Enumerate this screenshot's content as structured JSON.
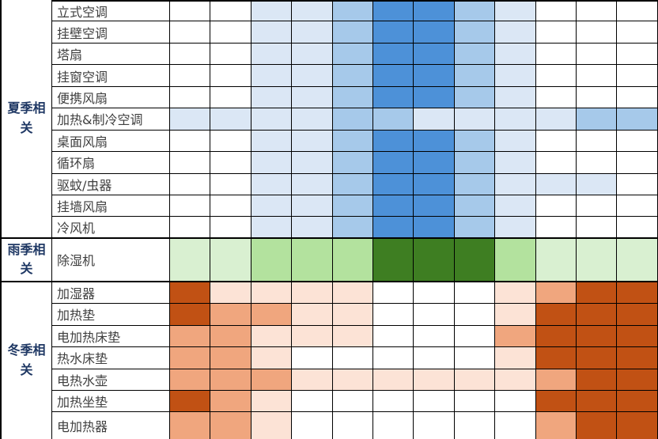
{
  "chart_data": {
    "type": "heatmap",
    "columns": 12,
    "column_labels": [],
    "levels": {
      "0": "none",
      "1": "low",
      "2": "medium",
      "3": "high"
    },
    "palettes": {
      "blue": [
        "#ffffff",
        "#dbe7f5",
        "#a6c9ea",
        "#4d91d8"
      ],
      "green": [
        "#ffffff",
        "#d9f0d1",
        "#b3e29e",
        "#3e7e22"
      ],
      "orange": [
        "#ffffff",
        "#fce3d6",
        "#f0a67e",
        "#c15114"
      ]
    },
    "sections": [
      {
        "key": "summer",
        "category": "夏季相关",
        "palette": "blue",
        "rows": [
          {
            "product": "立式空调",
            "cells": [
              0,
              0,
              1,
              1,
              2,
              3,
              3,
              2,
              1,
              0,
              0,
              0
            ]
          },
          {
            "product": "挂壁空调",
            "cells": [
              0,
              0,
              1,
              1,
              2,
              3,
              3,
              2,
              1,
              0,
              0,
              0
            ]
          },
          {
            "product": "塔扇",
            "cells": [
              0,
              0,
              1,
              1,
              2,
              3,
              3,
              2,
              1,
              0,
              0,
              0
            ]
          },
          {
            "product": "挂窗空调",
            "cells": [
              0,
              0,
              1,
              1,
              2,
              3,
              3,
              2,
              1,
              0,
              0,
              0
            ]
          },
          {
            "product": "便携风扇",
            "cells": [
              0,
              0,
              1,
              1,
              2,
              3,
              3,
              2,
              1,
              0,
              0,
              0
            ]
          },
          {
            "product": "加热&制冷空调",
            "cells": [
              1,
              1,
              1,
              1,
              2,
              2,
              1,
              1,
              1,
              1,
              2,
              2
            ]
          },
          {
            "product": "桌面风扇",
            "cells": [
              0,
              0,
              1,
              1,
              2,
              3,
              3,
              2,
              1,
              0,
              0,
              0
            ]
          },
          {
            "product": "循环扇",
            "cells": [
              0,
              0,
              1,
              1,
              2,
              3,
              3,
              2,
              1,
              0,
              0,
              0
            ]
          },
          {
            "product": "驱蚊/虫器",
            "cells": [
              0,
              0,
              1,
              1,
              2,
              3,
              3,
              2,
              1,
              1,
              1,
              0
            ]
          },
          {
            "product": "挂墙风扇",
            "cells": [
              0,
              0,
              1,
              1,
              2,
              3,
              3,
              2,
              1,
              0,
              0,
              0
            ]
          },
          {
            "product": "冷风机",
            "cells": [
              0,
              0,
              1,
              1,
              2,
              3,
              3,
              2,
              1,
              0,
              0,
              0
            ]
          }
        ]
      },
      {
        "key": "rainy",
        "category": "雨季相关",
        "palette": "green",
        "rows": [
          {
            "product": "除湿机",
            "cells": [
              1,
              1,
              2,
              2,
              2,
              3,
              3,
              3,
              2,
              1,
              1,
              1
            ]
          }
        ]
      },
      {
        "key": "winter",
        "category": "冬季相关",
        "palette": "orange",
        "rows": [
          {
            "product": "加湿器",
            "cells": [
              3,
              1,
              1,
              1,
              1,
              0,
              0,
              0,
              1,
              2,
              3,
              3
            ]
          },
          {
            "product": "加热垫",
            "cells": [
              3,
              2,
              2,
              1,
              1,
              0,
              0,
              0,
              1,
              3,
              3,
              3
            ]
          },
          {
            "product": "电加热床垫",
            "cells": [
              2,
              2,
              1,
              1,
              1,
              0,
              0,
              0,
              2,
              3,
              3,
              3
            ]
          },
          {
            "product": "热水床垫",
            "cells": [
              2,
              2,
              1,
              0,
              0,
              0,
              0,
              0,
              1,
              3,
              3,
              3
            ]
          },
          {
            "product": "电热水壶",
            "cells": [
              2,
              2,
              2,
              1,
              1,
              1,
              1,
              1,
              1,
              2,
              3,
              3
            ]
          },
          {
            "product": "加热坐垫",
            "cells": [
              3,
              2,
              1,
              0,
              0,
              0,
              0,
              0,
              0,
              3,
              3,
              3
            ]
          },
          {
            "product": "电加热器",
            "cells": [
              2,
              2,
              1,
              0,
              0,
              0,
              0,
              0,
              0,
              2,
              3,
              3
            ]
          }
        ]
      }
    ],
    "colors": {
      "category_text": "#1f3864",
      "product_text": "#3f3f3f",
      "border": "#000000"
    }
  }
}
